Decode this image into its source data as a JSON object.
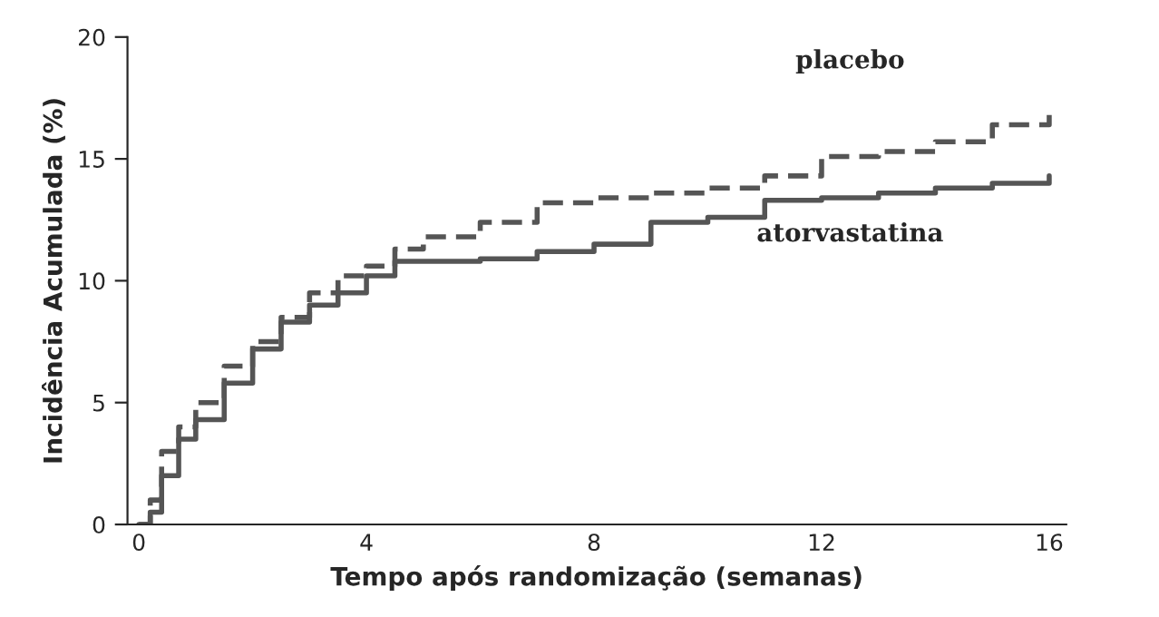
{
  "chart_data": {
    "type": "step",
    "xlabel": "Tempo após randomização (semanas)",
    "ylabel": "Incidência Acumulada (%)",
    "xlim": [
      -0.2,
      16.3
    ],
    "ylim": [
      0,
      20
    ],
    "xticks": [
      0,
      4,
      8,
      12,
      16
    ],
    "yticks": [
      0,
      5,
      10,
      15,
      20
    ],
    "grid": false,
    "legend": false,
    "series": [
      {
        "name": "placebo",
        "color": "#555555",
        "line_style": "dashed",
        "x": [
          0,
          0.2,
          0.4,
          0.7,
          1,
          1.5,
          2,
          2.5,
          3,
          3.5,
          4,
          4.5,
          5,
          6,
          7,
          8,
          9,
          10,
          11,
          12,
          13,
          14,
          15,
          16
        ],
        "values": [
          0,
          1,
          3,
          4,
          5,
          6.5,
          7.5,
          8.5,
          9.5,
          10.2,
          10.6,
          11.3,
          11.8,
          12.4,
          13.2,
          13.4,
          13.6,
          13.8,
          14.3,
          15.1,
          15.3,
          15.7,
          16.4,
          16.8
        ]
      },
      {
        "name": "atorvastatina",
        "color": "#555555",
        "line_style": "solid",
        "x": [
          0,
          0.2,
          0.4,
          0.7,
          1,
          1.5,
          2,
          2.5,
          3,
          3.5,
          4,
          4.5,
          5,
          6,
          7,
          8,
          9,
          10,
          11,
          12,
          13,
          14,
          15,
          16
        ],
        "values": [
          0,
          0.5,
          2,
          3.5,
          4.3,
          5.8,
          7.2,
          8.3,
          9,
          9.5,
          10.2,
          10.8,
          10.8,
          10.9,
          11.2,
          11.5,
          12.4,
          12.6,
          13.3,
          13.4,
          13.6,
          13.8,
          14,
          14.3
        ]
      }
    ]
  }
}
